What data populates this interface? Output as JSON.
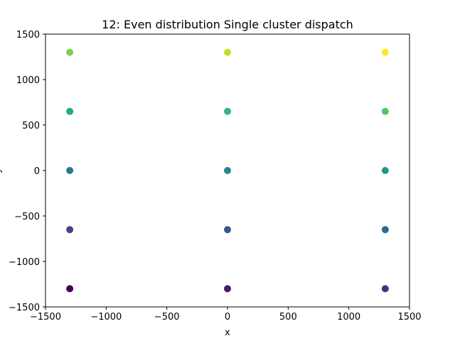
{
  "chart_data": {
    "type": "scatter",
    "title": "12: Even distribution Single cluster dispatch",
    "xlabel": "x",
    "ylabel": "y",
    "xlim": [
      -1500,
      1500
    ],
    "ylim": [
      -1500,
      1500
    ],
    "xticks": [
      -1500,
      -1000,
      -500,
      0,
      500,
      1000,
      1500
    ],
    "yticks": [
      -1500,
      -1000,
      -500,
      0,
      500,
      1000,
      1500
    ],
    "grid": false,
    "points": [
      {
        "x": -1300,
        "y": -1300,
        "color": "#440154"
      },
      {
        "x": 0,
        "y": -1300,
        "color": "#481a6c"
      },
      {
        "x": 1300,
        "y": -1300,
        "color": "#472f7d"
      },
      {
        "x": -1300,
        "y": -650,
        "color": "#414487"
      },
      {
        "x": 0,
        "y": -650,
        "color": "#39568c"
      },
      {
        "x": 1300,
        "y": -650,
        "color": "#31688e"
      },
      {
        "x": -1300,
        "y": 0,
        "color": "#2a788e"
      },
      {
        "x": 0,
        "y": 0,
        "color": "#23888e"
      },
      {
        "x": 1300,
        "y": 0,
        "color": "#1f988b"
      },
      {
        "x": -1300,
        "y": 650,
        "color": "#22a884"
      },
      {
        "x": 0,
        "y": 650,
        "color": "#35b779"
      },
      {
        "x": 1300,
        "y": 650,
        "color": "#54c568"
      },
      {
        "x": -1300,
        "y": 1300,
        "color": "#7ad151"
      },
      {
        "x": 0,
        "y": 1300,
        "color": "#bddf26"
      },
      {
        "x": 1300,
        "y": 1300,
        "color": "#fde725"
      }
    ]
  }
}
